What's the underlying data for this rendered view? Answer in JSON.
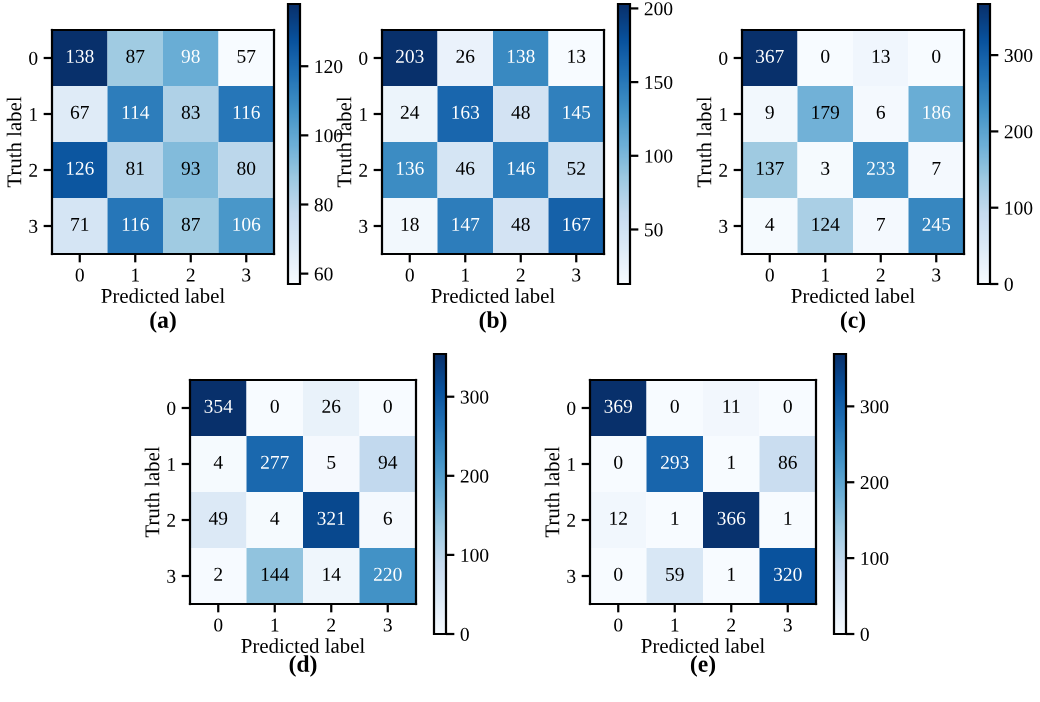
{
  "chart_data": [
    {
      "type": "heatmap",
      "xlabel": "Predicted label",
      "ylabel": "Truth label",
      "categories": [
        "0",
        "1",
        "2",
        "3"
      ],
      "y_categories": [
        "0",
        "1",
        "2",
        "3"
      ],
      "cells": [
        [
          138,
          87,
          98,
          57
        ],
        [
          67,
          114,
          83,
          116
        ],
        [
          126,
          81,
          93,
          80
        ],
        [
          71,
          116,
          87,
          106
        ]
      ],
      "clim": [
        57,
        138
      ],
      "cticks": [
        60,
        80,
        100,
        120
      ],
      "data_labels": true,
      "annotations": [
        "(a)"
      ]
    },
    {
      "type": "heatmap",
      "xlabel": "Predicted label",
      "ylabel": "Truth label",
      "categories": [
        "0",
        "1",
        "2",
        "3"
      ],
      "y_categories": [
        "0",
        "1",
        "2",
        "3"
      ],
      "cells": [
        [
          203,
          26,
          138,
          13
        ],
        [
          24,
          163,
          48,
          145
        ],
        [
          136,
          46,
          146,
          52
        ],
        [
          18,
          147,
          48,
          167
        ]
      ],
      "clim": [
        13,
        203
      ],
      "cticks": [
        50,
        100,
        150,
        200
      ],
      "data_labels": true,
      "annotations": [
        "(b)"
      ]
    },
    {
      "type": "heatmap",
      "xlabel": "Predicted label",
      "ylabel": "Truth label",
      "categories": [
        "0",
        "1",
        "2",
        "3"
      ],
      "y_categories": [
        "0",
        "1",
        "2",
        "3"
      ],
      "cells": [
        [
          367,
          0,
          13,
          0
        ],
        [
          9,
          179,
          6,
          186
        ],
        [
          137,
          3,
          233,
          7
        ],
        [
          4,
          124,
          7,
          245
        ]
      ],
      "clim": [
        0,
        367
      ],
      "cticks": [
        0,
        100,
        200,
        300
      ],
      "data_labels": true,
      "annotations": [
        "(c)"
      ]
    },
    {
      "type": "heatmap",
      "xlabel": "Predicted label",
      "ylabel": "Truth label",
      "categories": [
        "0",
        "1",
        "2",
        "3"
      ],
      "y_categories": [
        "0",
        "1",
        "2",
        "3"
      ],
      "cells": [
        [
          354,
          0,
          26,
          0
        ],
        [
          4,
          277,
          5,
          94
        ],
        [
          49,
          4,
          321,
          6
        ],
        [
          2,
          144,
          14,
          220
        ]
      ],
      "clim": [
        0,
        354
      ],
      "cticks": [
        0,
        100,
        200,
        300
      ],
      "data_labels": true,
      "annotations": [
        "(d)"
      ]
    },
    {
      "type": "heatmap",
      "xlabel": "Predicted label",
      "ylabel": "Truth label",
      "categories": [
        "0",
        "1",
        "2",
        "3"
      ],
      "y_categories": [
        "0",
        "1",
        "2",
        "3"
      ],
      "cells": [
        [
          369,
          0,
          11,
          0
        ],
        [
          0,
          293,
          1,
          86
        ],
        [
          12,
          1,
          366,
          1
        ],
        [
          0,
          59,
          1,
          320
        ]
      ],
      "clim": [
        0,
        369
      ],
      "cticks": [
        0,
        100,
        200,
        300
      ],
      "data_labels": true,
      "annotations": [
        "(e)"
      ]
    }
  ]
}
